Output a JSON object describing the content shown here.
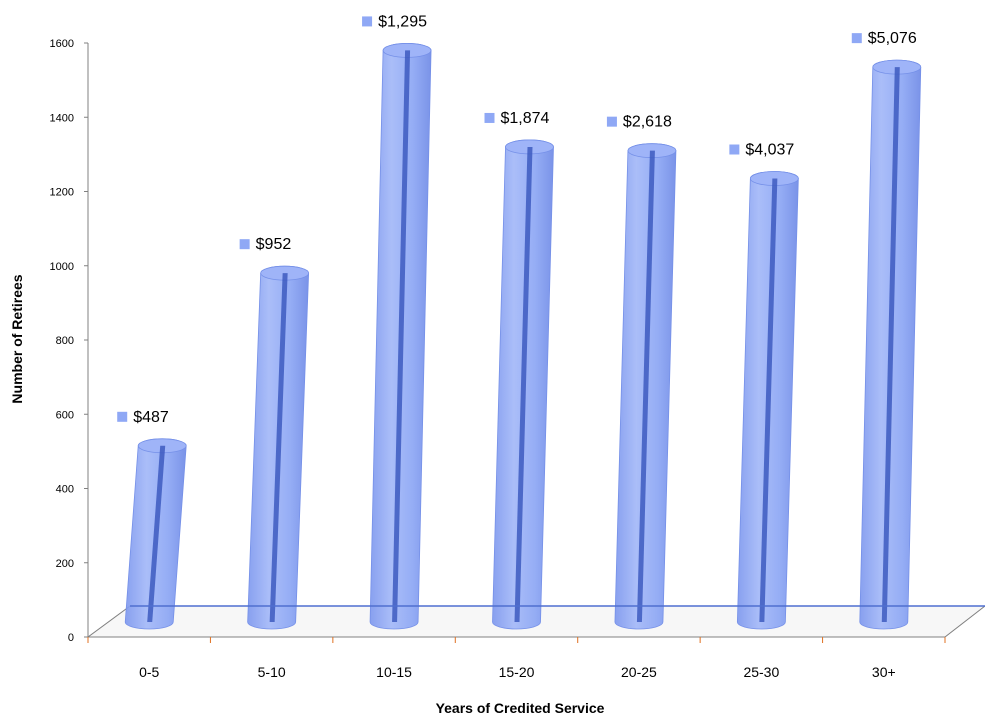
{
  "chart_data": {
    "type": "bar",
    "categories": [
      "0-5",
      "5-10",
      "10-15",
      "15-20",
      "20-25",
      "25-30",
      "30+"
    ],
    "values": [
      515,
      980,
      1580,
      1320,
      1310,
      1235,
      1535
    ],
    "data_labels": [
      "$487",
      "$952",
      "$1,295",
      "$1,874",
      "$2,618",
      "$4,037",
      "$5,076"
    ],
    "xlabel": "Years of Credited Service",
    "ylabel": "Number of Retirees",
    "ylim": [
      0,
      1600
    ],
    "yticks": [
      "0",
      "200",
      "400",
      "600",
      "800",
      "1000",
      "1200",
      "1400",
      "1600"
    ],
    "grid": false,
    "bar_shape": "cylinder",
    "colors": {
      "bar": "#8fa8f5",
      "bar_core": "#3d5bbf",
      "marker": "#8fa8f5",
      "floor": "#808080",
      "axis": "#808080",
      "tick": "#e07020"
    }
  }
}
